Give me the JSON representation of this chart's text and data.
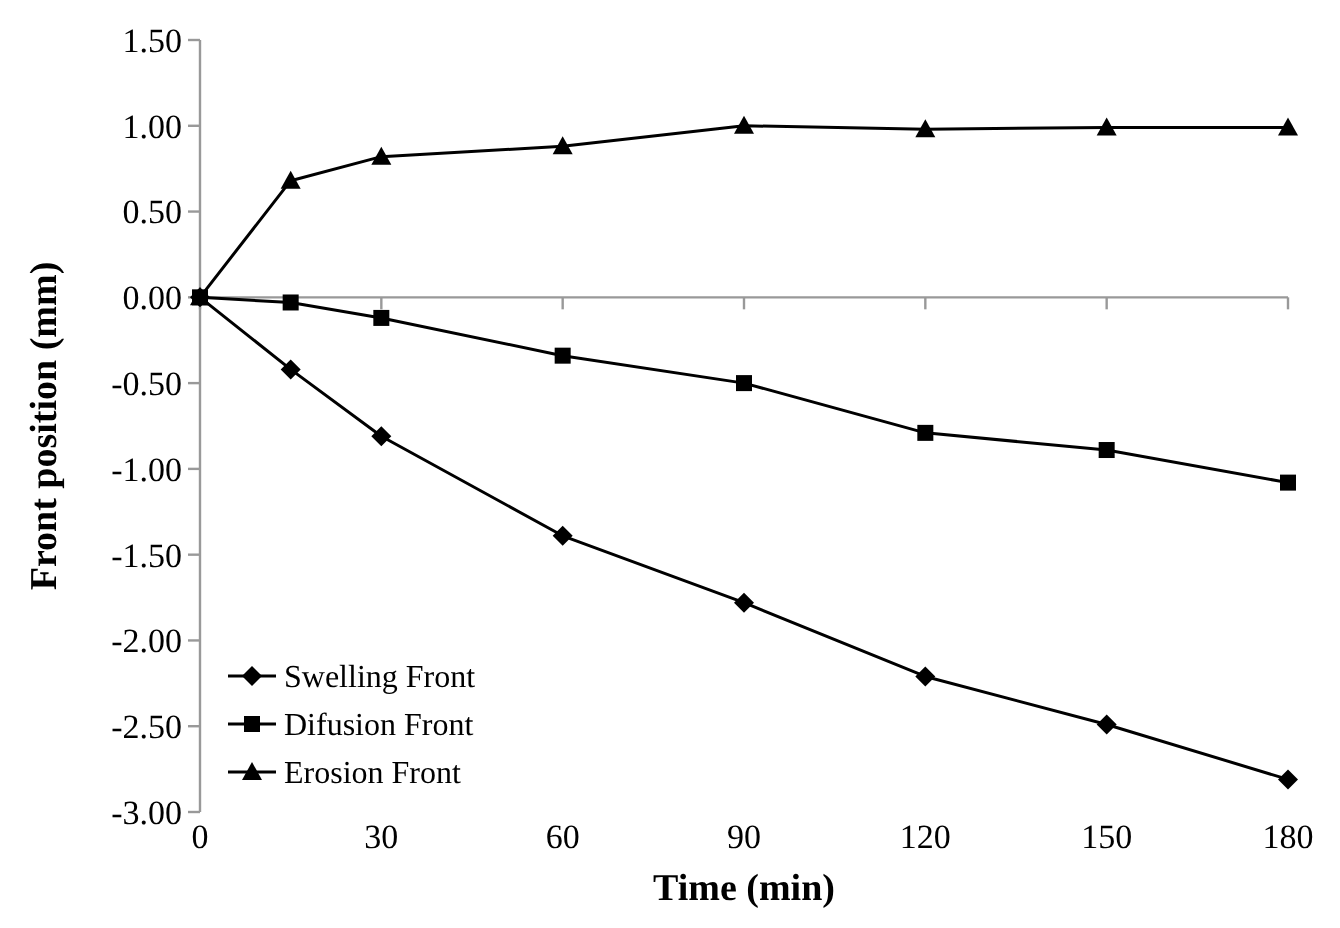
{
  "chart_data": {
    "type": "line",
    "xlabel": "Time (min)",
    "ylabel": "Front position (mm)",
    "x": [
      0,
      15,
      30,
      60,
      90,
      120,
      150,
      180
    ],
    "series": [
      {
        "name": "Swelling Front",
        "color": "#000000",
        "marker": "diamond",
        "values": [
          0,
          -0.42,
          -0.81,
          -1.39,
          -1.78,
          -2.21,
          -2.49,
          -2.81
        ]
      },
      {
        "name": "Difusion Front",
        "color": "#000000",
        "marker": "square",
        "values": [
          0,
          -0.03,
          -0.12,
          -0.34,
          -0.5,
          -0.79,
          -0.89,
          -1.08
        ]
      },
      {
        "name": "Erosion Front",
        "color": "#000000",
        "marker": "triangle",
        "values": [
          0,
          0.68,
          0.82,
          0.88,
          1.0,
          0.98,
          0.99,
          0.99
        ]
      }
    ],
    "xlim": [
      0,
      180
    ],
    "xticks": [
      0,
      30,
      60,
      90,
      120,
      150,
      180
    ],
    "ylim": [
      -3,
      1.5
    ],
    "yticks": [
      {
        "value": -3,
        "label": "-3.00"
      },
      {
        "value": -2.5,
        "label": "-2.50"
      },
      {
        "value": -2,
        "label": "-2.00"
      },
      {
        "value": -1.5,
        "label": "-1.50"
      },
      {
        "value": -1,
        "label": "-1.00"
      },
      {
        "value": -0.5,
        "label": "-0.50"
      },
      {
        "value": 0,
        "label": "0.00"
      },
      {
        "value": 0.5,
        "label": "0.50"
      },
      {
        "value": 1,
        "label": "1.00"
      },
      {
        "value": 1.5,
        "label": "1.50"
      }
    ],
    "legend": "bottom left",
    "line_style": "solid"
  }
}
